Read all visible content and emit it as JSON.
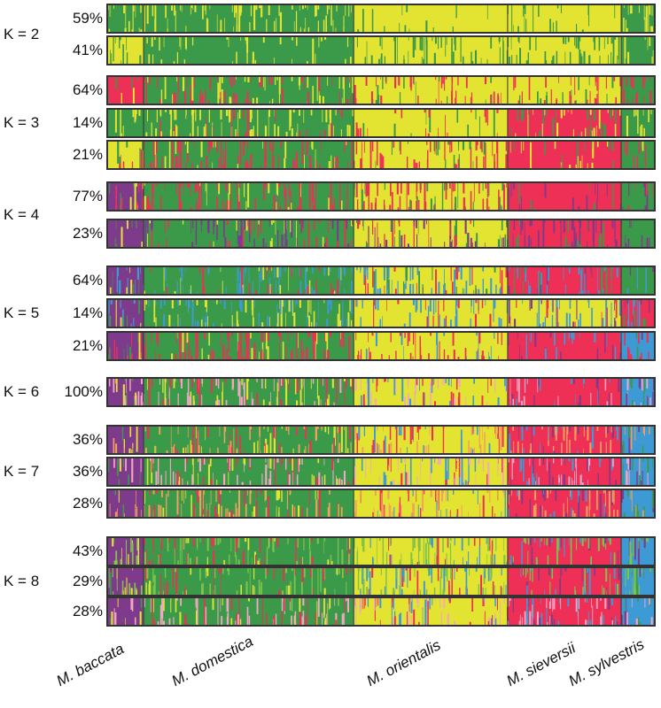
{
  "chart_data": {
    "type": "stacked-bar",
    "colors": {
      "green": "#3b9a4a",
      "yellow": "#e3e332",
      "red": "#ee2f56",
      "purple": "#7e3b8c",
      "blue": "#3e9ad4",
      "pink": "#f2a6c4",
      "orange": "#f2a05d",
      "lightgreen": "#7cc24b"
    },
    "species": [
      "M. baccata",
      "M. domestica",
      "M. orientalis",
      "M. sieversii",
      "M. sylvestris"
    ],
    "group_bounds": [
      0.0,
      0.065,
      0.45,
      0.732,
      0.94,
      1.0
    ],
    "runs": [
      {
        "k_label": "K = 2",
        "panels": [
          {
            "pct": "59%",
            "base": [
              "green",
              "green",
              "yellow",
              "yellow",
              "green"
            ],
            "sec": "yellow"
          },
          {
            "pct": "41%",
            "base": [
              "yellow",
              "green",
              "yellow",
              "yellow",
              "green"
            ],
            "sec": "green"
          }
        ]
      },
      {
        "k_label": "K = 3",
        "panels": [
          {
            "pct": "64%",
            "base": [
              "red",
              "green",
              "yellow",
              "yellow",
              "green"
            ],
            "sec": "red"
          },
          {
            "pct": "14%",
            "base": [
              "green",
              "green",
              "yellow",
              "red",
              "green"
            ],
            "sec": "yellow"
          },
          {
            "pct": "21%",
            "base": [
              "yellow",
              "green",
              "yellow",
              "red",
              "green"
            ],
            "sec": "red"
          }
        ]
      },
      {
        "k_label": "K = 4",
        "panels": [
          {
            "pct": "77%",
            "base": [
              "purple",
              "green",
              "yellow",
              "red",
              "green"
            ],
            "sec": "red"
          },
          {
            "pct": "23%",
            "base": [
              "purple",
              "green",
              "yellow",
              "red",
              "green"
            ],
            "sec": "purple"
          }
        ]
      },
      {
        "k_label": "K = 5",
        "panels": [
          {
            "pct": "64%",
            "base": [
              "purple",
              "green",
              "yellow",
              "red",
              "green"
            ],
            "sec": "blue"
          },
          {
            "pct": "14%",
            "base": [
              "purple",
              "green",
              "yellow",
              "yellow",
              "red"
            ],
            "sec": "blue"
          },
          {
            "pct": "21%",
            "base": [
              "purple",
              "green",
              "yellow",
              "red",
              "blue"
            ],
            "sec": "red"
          }
        ]
      },
      {
        "k_label": "K = 6",
        "panels": [
          {
            "pct": "100%",
            "base": [
              "purple",
              "green",
              "yellow",
              "red",
              "blue"
            ],
            "sec": "pink"
          }
        ]
      },
      {
        "k_label": "K = 7",
        "panels": [
          {
            "pct": "36%",
            "base": [
              "purple",
              "green",
              "yellow",
              "red",
              "blue"
            ],
            "sec": "orange"
          },
          {
            "pct": "36%",
            "base": [
              "purple",
              "green",
              "yellow",
              "red",
              "blue"
            ],
            "sec": "pink"
          },
          {
            "pct": "28%",
            "base": [
              "purple",
              "green",
              "yellow",
              "red",
              "blue"
            ],
            "sec": "orange"
          }
        ]
      },
      {
        "k_label": "K = 8",
        "panels": [
          {
            "pct": "43%",
            "base": [
              "purple",
              "green",
              "yellow",
              "red",
              "blue"
            ],
            "sec": "lightgreen"
          },
          {
            "pct": "29%",
            "base": [
              "purple",
              "green",
              "yellow",
              "red",
              "blue"
            ],
            "sec": "lightgreen"
          },
          {
            "pct": "28%",
            "base": [
              "purple",
              "green",
              "yellow",
              "red",
              "blue"
            ],
            "sec": "pink"
          }
        ]
      }
    ]
  }
}
